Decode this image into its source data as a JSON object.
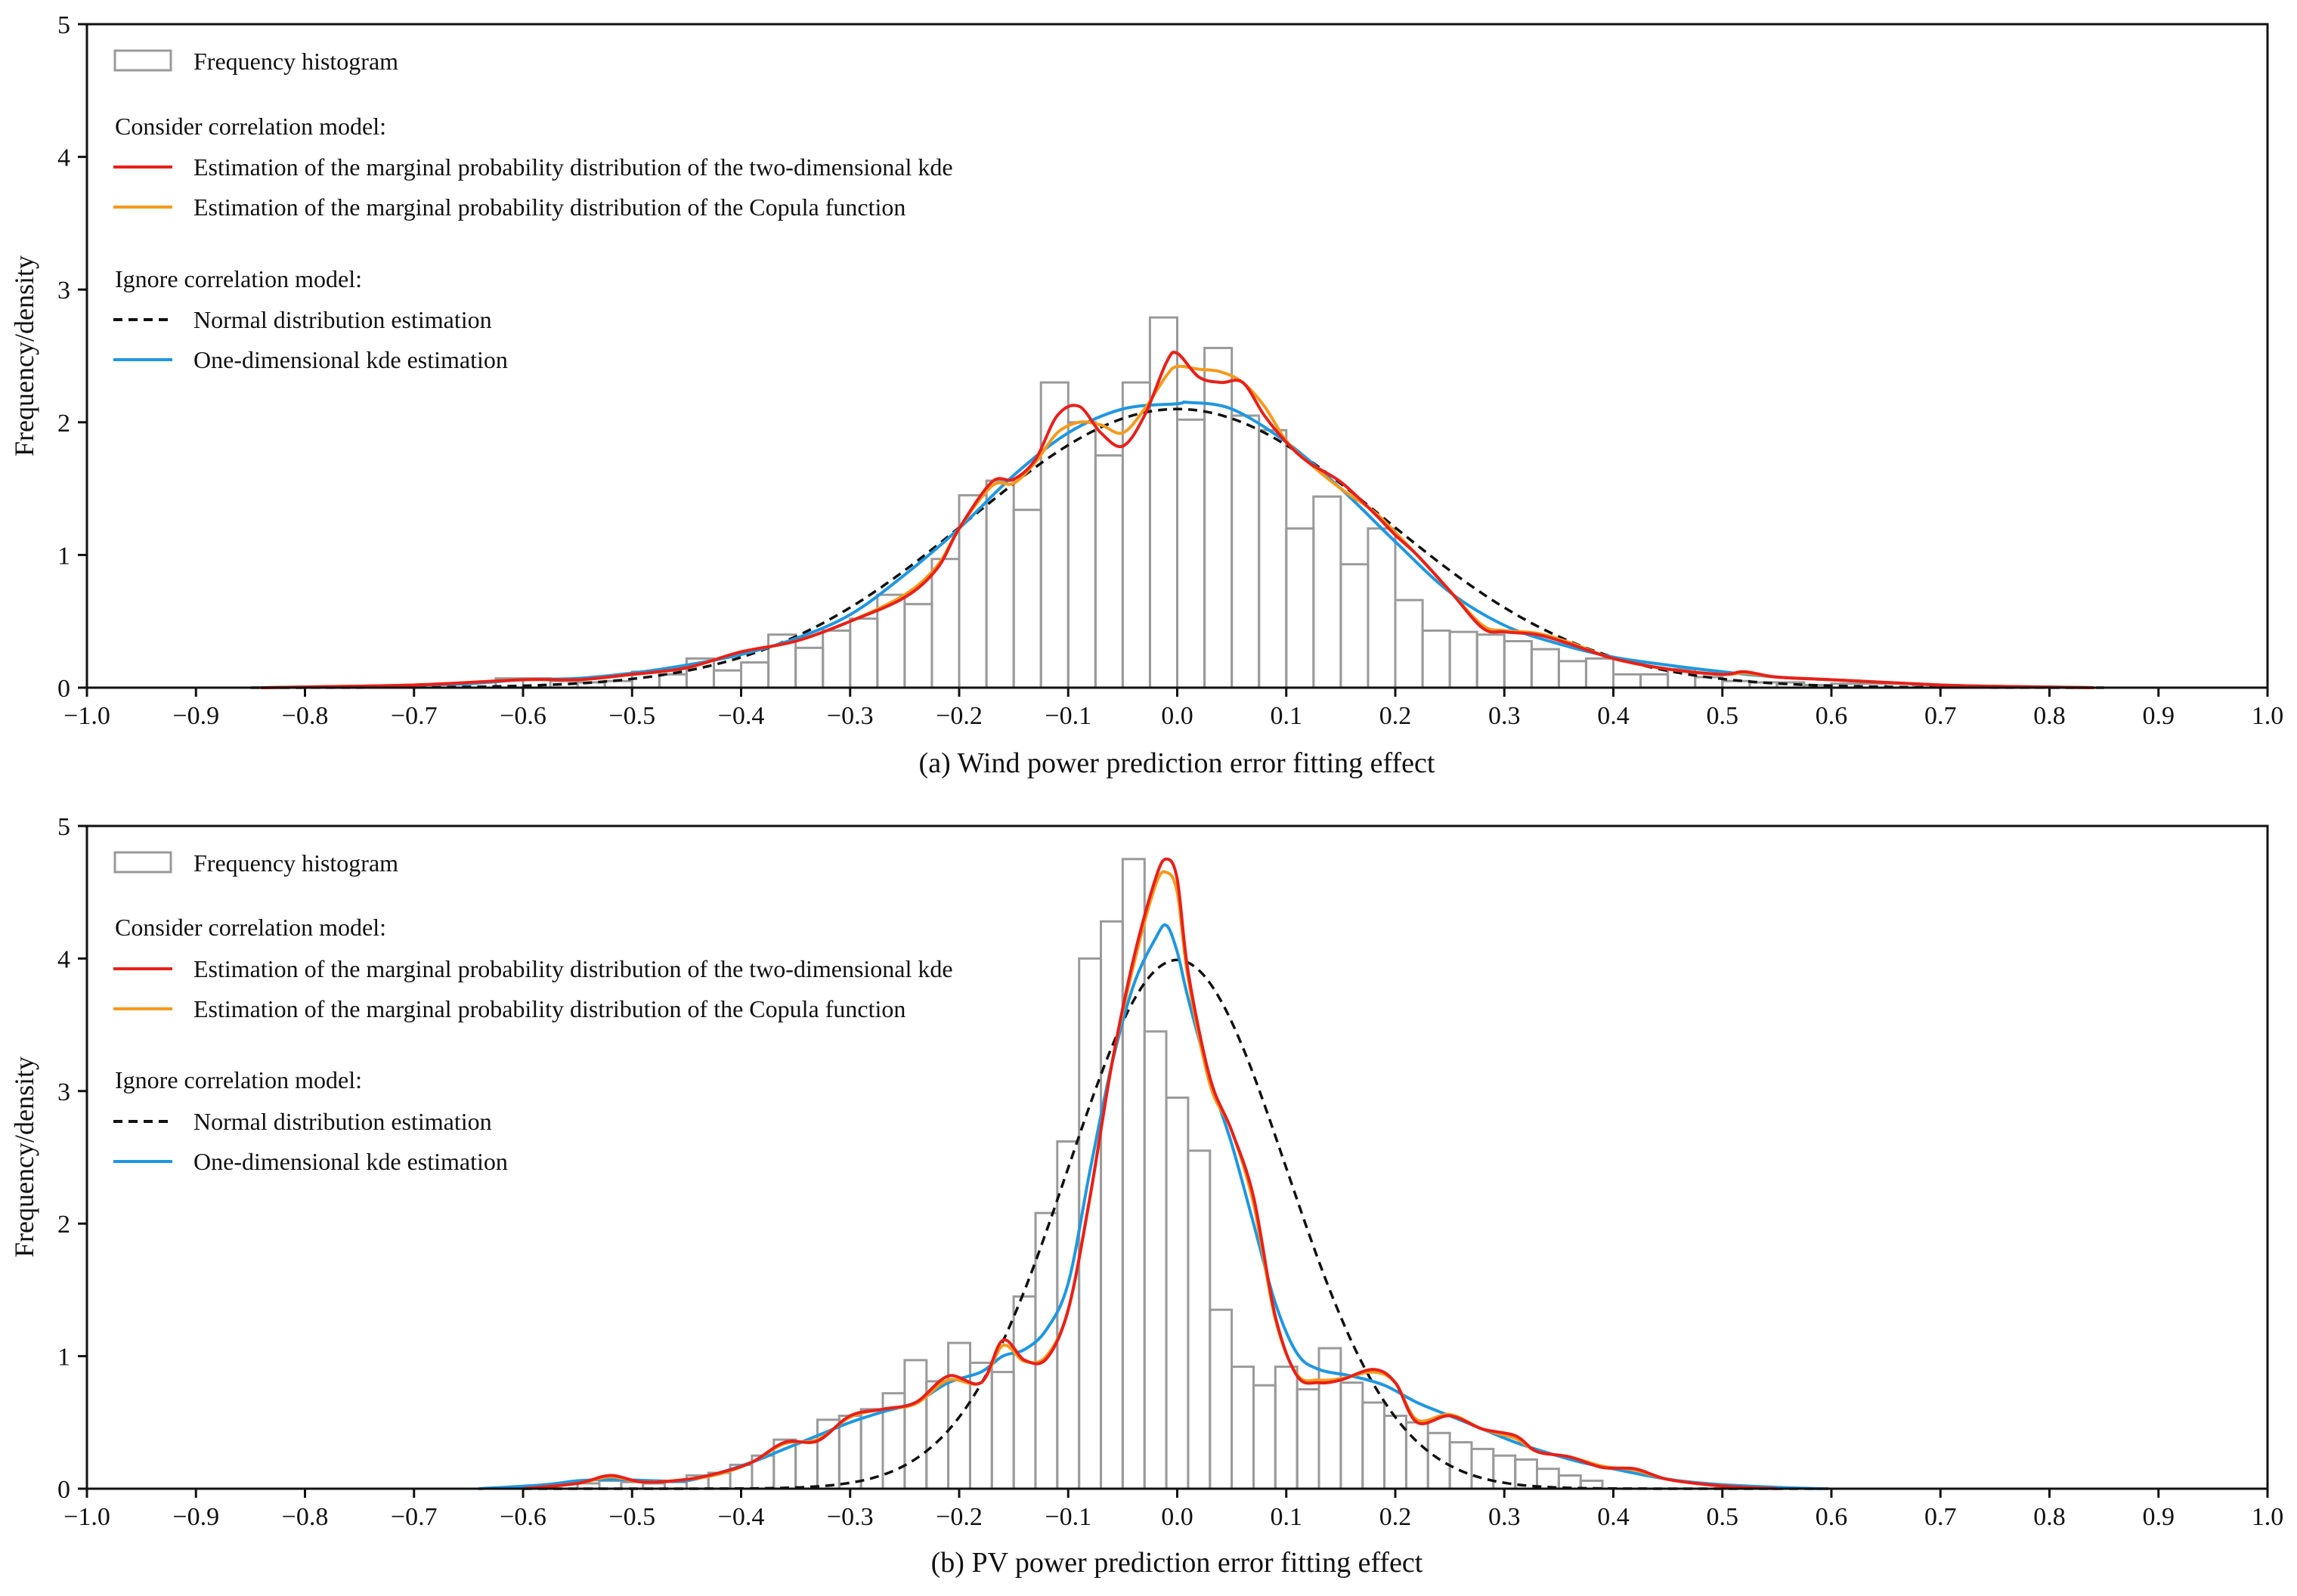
{
  "chart_data": [
    {
      "type": "histogram+line",
      "caption": "(a) Wind power prediction error fitting effect",
      "ylabel": "Frequency/density",
      "xlim": [
        -1.0,
        1.0
      ],
      "ylim": [
        0,
        5
      ],
      "x_ticks": [
        "-1.0",
        "-0.9",
        "-0.8",
        "-0.7",
        "-0.6",
        "-0.5",
        "-0.4",
        "-0.3",
        "-0.2",
        "-0.1",
        "0.0",
        "0.1",
        "0.2",
        "0.3",
        "0.4",
        "0.5",
        "0.6",
        "0.7",
        "0.8",
        "0.9",
        "1.0"
      ],
      "y_ticks": [
        "0",
        "1",
        "2",
        "3",
        "4",
        "5"
      ],
      "legend": {
        "histogram": "Frequency histogram",
        "group1_title": "Consider correlation model:",
        "kde2d": "Estimation of the marginal probability distribution of the two-dimensional kde",
        "copula": "Estimation of the marginal probability distribution of the Copula function",
        "group2_title": "Ignore correlation model:",
        "normal": "Normal distribution estimation",
        "kde1d": "One-dimensional kde estimation"
      },
      "colors": {
        "kde2d": "#e8201a",
        "copula": "#f59a1c",
        "normal": "#111111",
        "kde1d": "#1f97e0",
        "hist": "#9a9a9a"
      },
      "histogram": {
        "bin_start": -0.625,
        "bin_width": 0.025,
        "values": [
          0.07,
          0.07,
          0.05,
          0.04,
          0.05,
          0.12,
          0.1,
          0.22,
          0.13,
          0.19,
          0.4,
          0.3,
          0.43,
          0.52,
          0.7,
          0.63,
          0.97,
          1.45,
          1.56,
          1.34,
          2.3,
          2.0,
          1.75,
          2.3,
          2.79,
          2.02,
          2.56,
          2.05,
          1.94,
          1.2,
          1.44,
          0.93,
          1.2,
          0.66,
          0.43,
          0.42,
          0.4,
          0.35,
          0.29,
          0.2,
          0.22,
          0.1,
          0.1,
          0.14,
          0.08,
          0.05,
          0.04,
          0.04,
          0.02,
          0.03,
          0.03,
          0.03
        ]
      },
      "series": [
        {
          "name": "kde2d",
          "x": [
            -0.84,
            -0.7,
            -0.6,
            -0.55,
            -0.5,
            -0.45,
            -0.4,
            -0.35,
            -0.3,
            -0.25,
            -0.22,
            -0.2,
            -0.17,
            -0.15,
            -0.13,
            -0.11,
            -0.09,
            -0.07,
            -0.05,
            -0.03,
            -0.01,
            0.0,
            0.02,
            0.04,
            0.06,
            0.08,
            0.1,
            0.12,
            0.15,
            0.18,
            0.2,
            0.22,
            0.25,
            0.28,
            0.3,
            0.33,
            0.36,
            0.4,
            0.45,
            0.5,
            0.52,
            0.55,
            0.6,
            0.7,
            0.75,
            0.84
          ],
          "y": [
            0.0,
            0.02,
            0.06,
            0.06,
            0.1,
            0.15,
            0.27,
            0.35,
            0.5,
            0.68,
            0.9,
            1.2,
            1.55,
            1.57,
            1.72,
            2.05,
            2.12,
            1.92,
            1.82,
            2.05,
            2.45,
            2.52,
            2.34,
            2.3,
            2.3,
            2.05,
            1.85,
            1.7,
            1.55,
            1.32,
            1.15,
            1.0,
            0.73,
            0.45,
            0.42,
            0.4,
            0.33,
            0.22,
            0.14,
            0.1,
            0.12,
            0.08,
            0.06,
            0.02,
            0.01,
            0.0
          ]
        },
        {
          "name": "copula",
          "x": [
            -0.84,
            -0.7,
            -0.6,
            -0.55,
            -0.5,
            -0.45,
            -0.4,
            -0.35,
            -0.3,
            -0.25,
            -0.22,
            -0.2,
            -0.17,
            -0.15,
            -0.13,
            -0.11,
            -0.09,
            -0.07,
            -0.05,
            -0.03,
            -0.01,
            0.0,
            0.02,
            0.04,
            0.06,
            0.08,
            0.1,
            0.12,
            0.15,
            0.18,
            0.2,
            0.22,
            0.25,
            0.28,
            0.3,
            0.33,
            0.36,
            0.4,
            0.45,
            0.5,
            0.52,
            0.55,
            0.6,
            0.7,
            0.75,
            0.84
          ],
          "y": [
            0.0,
            0.02,
            0.06,
            0.06,
            0.1,
            0.15,
            0.27,
            0.35,
            0.5,
            0.7,
            0.92,
            1.2,
            1.52,
            1.54,
            1.7,
            1.92,
            2.0,
            1.98,
            1.92,
            2.1,
            2.35,
            2.42,
            2.4,
            2.38,
            2.3,
            2.12,
            1.86,
            1.7,
            1.5,
            1.33,
            1.17,
            1.0,
            0.73,
            0.47,
            0.43,
            0.41,
            0.34,
            0.22,
            0.14,
            0.1,
            0.11,
            0.08,
            0.06,
            0.02,
            0.01,
            0.0
          ]
        },
        {
          "name": "kde1d",
          "x": [
            -0.84,
            -0.75,
            -0.7,
            -0.65,
            -0.6,
            -0.55,
            -0.5,
            -0.45,
            -0.4,
            -0.35,
            -0.3,
            -0.25,
            -0.2,
            -0.15,
            -0.1,
            -0.05,
            0.0,
            0.01,
            0.05,
            0.1,
            0.15,
            0.2,
            0.25,
            0.3,
            0.35,
            0.4,
            0.45,
            0.5,
            0.55,
            0.6,
            0.65,
            0.7,
            0.75,
            0.8,
            0.84
          ],
          "y": [
            0.0,
            0.01,
            0.02,
            0.03,
            0.06,
            0.07,
            0.11,
            0.17,
            0.25,
            0.37,
            0.55,
            0.85,
            1.2,
            1.6,
            1.92,
            2.1,
            2.14,
            2.15,
            2.1,
            1.85,
            1.5,
            1.1,
            0.72,
            0.47,
            0.33,
            0.23,
            0.17,
            0.12,
            0.08,
            0.06,
            0.04,
            0.02,
            0.01,
            0.005,
            0.0
          ]
        },
        {
          "name": "normal",
          "mu": 0.0,
          "sigma": 0.19,
          "xrange": [
            -0.85,
            0.85
          ]
        }
      ]
    },
    {
      "type": "histogram+line",
      "caption": "(b) PV power prediction error fitting effect",
      "ylabel": "Frequency/density",
      "xlim": [
        -1.0,
        1.0
      ],
      "ylim": [
        0,
        5
      ],
      "x_ticks": [
        "-1.0",
        "-0.9",
        "-0.8",
        "-0.7",
        "-0.6",
        "-0.5",
        "-0.4",
        "-0.3",
        "-0.2",
        "-0.1",
        "0.0",
        "0.1",
        "0.2",
        "0.3",
        "0.4",
        "0.5",
        "0.6",
        "0.7",
        "0.8",
        "0.9",
        "1.0"
      ],
      "y_ticks": [
        "0",
        "1",
        "2",
        "3",
        "4",
        "5"
      ],
      "legend": {
        "histogram": "Frequency histogram",
        "group1_title": "Consider correlation model:",
        "kde2d": "Estimation of the marginal probability distribution of the two-dimensional kde",
        "copula": "Estimation of the marginal probability distribution of the Copula function",
        "group2_title": "Ignore correlation model:",
        "normal": "Normal distribution estimation",
        "kde1d": "One-dimensional kde estimation"
      },
      "colors": {
        "kde2d": "#e8201a",
        "copula": "#f59a1c",
        "normal": "#111111",
        "kde1d": "#1f97e0",
        "hist": "#9a9a9a"
      },
      "histogram": {
        "bin_start": -0.57,
        "bin_width": 0.02,
        "values": [
          0.04,
          0.04,
          0.06,
          0.05,
          0.04,
          0.05,
          0.1,
          0.12,
          0.18,
          0.25,
          0.37,
          0.35,
          0.52,
          0.55,
          0.6,
          0.72,
          0.97,
          0.81,
          1.1,
          0.95,
          0.88,
          1.45,
          2.08,
          2.62,
          4.0,
          4.28,
          4.75,
          3.45,
          2.95,
          2.55,
          1.35,
          0.92,
          0.78,
          0.92,
          0.75,
          1.06,
          0.8,
          0.65,
          0.55,
          0.5,
          0.42,
          0.35,
          0.3,
          0.25,
          0.22,
          0.15,
          0.1,
          0.06
        ]
      },
      "series": [
        {
          "name": "kde2d",
          "x": [
            -0.6,
            -0.55,
            -0.52,
            -0.49,
            -0.45,
            -0.42,
            -0.39,
            -0.36,
            -0.33,
            -0.3,
            -0.27,
            -0.24,
            -0.21,
            -0.18,
            -0.16,
            -0.14,
            -0.12,
            -0.1,
            -0.08,
            -0.06,
            -0.04,
            -0.02,
            -0.01,
            0.0,
            0.01,
            0.03,
            0.05,
            0.07,
            0.09,
            0.11,
            0.13,
            0.15,
            0.18,
            0.2,
            0.22,
            0.25,
            0.28,
            0.31,
            0.33,
            0.36,
            0.39,
            0.42,
            0.45,
            0.5,
            0.55
          ],
          "y": [
            0.0,
            0.04,
            0.1,
            0.05,
            0.07,
            0.12,
            0.2,
            0.35,
            0.36,
            0.55,
            0.6,
            0.65,
            0.85,
            0.8,
            1.12,
            0.97,
            0.98,
            1.35,
            2.2,
            3.2,
            4.0,
            4.6,
            4.75,
            4.6,
            3.9,
            3.1,
            2.7,
            2.2,
            1.3,
            0.85,
            0.8,
            0.82,
            0.9,
            0.8,
            0.5,
            0.55,
            0.45,
            0.4,
            0.28,
            0.24,
            0.16,
            0.15,
            0.07,
            0.02,
            0.0
          ]
        },
        {
          "name": "copula",
          "x": [
            -0.6,
            -0.55,
            -0.52,
            -0.49,
            -0.45,
            -0.42,
            -0.39,
            -0.36,
            -0.33,
            -0.3,
            -0.27,
            -0.24,
            -0.21,
            -0.18,
            -0.16,
            -0.14,
            -0.12,
            -0.1,
            -0.08,
            -0.06,
            -0.04,
            -0.02,
            -0.01,
            0.0,
            0.01,
            0.03,
            0.05,
            0.07,
            0.09,
            0.11,
            0.13,
            0.15,
            0.18,
            0.2,
            0.22,
            0.25,
            0.28,
            0.31,
            0.33,
            0.36,
            0.39,
            0.42,
            0.45,
            0.5,
            0.55
          ],
          "y": [
            0.0,
            0.04,
            0.09,
            0.05,
            0.07,
            0.11,
            0.2,
            0.34,
            0.37,
            0.54,
            0.6,
            0.64,
            0.82,
            0.8,
            1.08,
            0.96,
            1.0,
            1.35,
            2.2,
            3.2,
            3.95,
            4.55,
            4.65,
            4.5,
            3.85,
            3.05,
            2.7,
            2.15,
            1.28,
            0.86,
            0.82,
            0.83,
            0.88,
            0.8,
            0.52,
            0.56,
            0.45,
            0.38,
            0.28,
            0.24,
            0.17,
            0.14,
            0.07,
            0.02,
            0.0
          ]
        },
        {
          "name": "kde1d",
          "x": [
            -0.64,
            -0.58,
            -0.55,
            -0.52,
            -0.48,
            -0.45,
            -0.42,
            -0.39,
            -0.36,
            -0.33,
            -0.3,
            -0.27,
            -0.24,
            -0.21,
            -0.18,
            -0.16,
            -0.14,
            -0.12,
            -0.1,
            -0.08,
            -0.06,
            -0.04,
            -0.02,
            -0.01,
            0.0,
            0.01,
            0.03,
            0.05,
            0.07,
            0.09,
            0.11,
            0.13,
            0.16,
            0.19,
            0.22,
            0.25,
            0.28,
            0.31,
            0.34,
            0.37,
            0.4,
            0.43,
            0.46,
            0.5,
            0.55,
            0.59
          ],
          "y": [
            0.0,
            0.03,
            0.06,
            0.07,
            0.06,
            0.06,
            0.12,
            0.2,
            0.3,
            0.4,
            0.5,
            0.58,
            0.65,
            0.8,
            0.88,
            1.0,
            1.05,
            1.2,
            1.55,
            2.4,
            3.2,
            3.8,
            4.15,
            4.25,
            4.05,
            3.7,
            3.1,
            2.6,
            2.0,
            1.4,
            1.02,
            0.9,
            0.85,
            0.78,
            0.65,
            0.55,
            0.45,
            0.35,
            0.27,
            0.2,
            0.15,
            0.1,
            0.06,
            0.03,
            0.01,
            0.0
          ]
        },
        {
          "name": "normal",
          "mu": 0.0,
          "sigma": 0.1,
          "xrange": [
            -0.6,
            0.6
          ]
        }
      ]
    }
  ]
}
